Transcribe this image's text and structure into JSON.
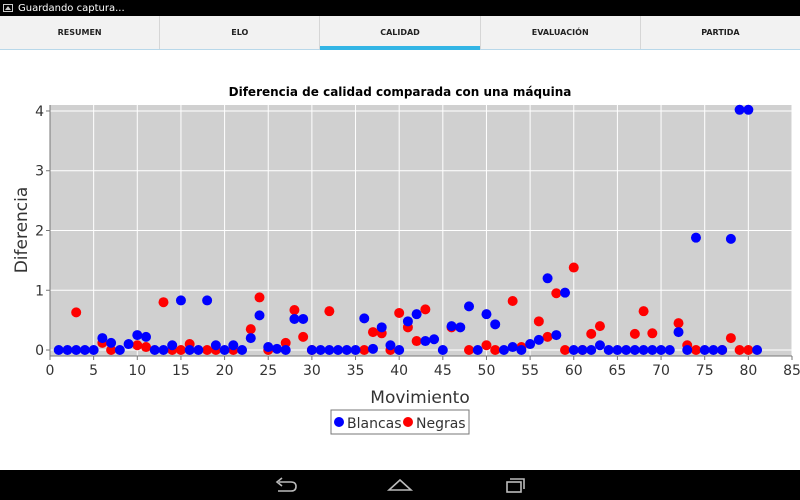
{
  "status": {
    "text": "Guardando captura..."
  },
  "tabs": [
    {
      "label": "RESUMEN",
      "active": false
    },
    {
      "label": "ELO",
      "active": false
    },
    {
      "label": "CALIDAD",
      "active": true
    },
    {
      "label": "EVALUACIÓN",
      "active": false
    },
    {
      "label": "PARTIDA",
      "active": false
    }
  ],
  "chart_data": {
    "type": "scatter",
    "title": "Diferencia de calidad comparada con una máquina",
    "xlabel": "Movimiento",
    "ylabel": "Diferencia",
    "xlim": [
      0,
      85
    ],
    "ylim": [
      -0.1,
      4.1
    ],
    "xticks": [
      0,
      5,
      10,
      15,
      20,
      25,
      30,
      35,
      40,
      45,
      50,
      55,
      60,
      65,
      70,
      75,
      80,
      85
    ],
    "yticks": [
      0,
      1,
      2,
      3,
      4
    ],
    "grid": true,
    "legend_position": "bottom-center",
    "series": [
      {
        "name": "Blancas",
        "color": "#0000ff",
        "points": [
          [
            1,
            0
          ],
          [
            2,
            0
          ],
          [
            3,
            0
          ],
          [
            4,
            0
          ],
          [
            5,
            0
          ],
          [
            6,
            0.2
          ],
          [
            7,
            0.12
          ],
          [
            8,
            0
          ],
          [
            9,
            0.1
          ],
          [
            10,
            0.25
          ],
          [
            11,
            0.22
          ],
          [
            12,
            0
          ],
          [
            13,
            0
          ],
          [
            14,
            0.08
          ],
          [
            15,
            0.83
          ],
          [
            16,
            0
          ],
          [
            17,
            0
          ],
          [
            18,
            0.83
          ],
          [
            19,
            0.08
          ],
          [
            20,
            0
          ],
          [
            21,
            0.08
          ],
          [
            22,
            0
          ],
          [
            23,
            0.2
          ],
          [
            24,
            0.58
          ],
          [
            25,
            0.05
          ],
          [
            26,
            0.02
          ],
          [
            27,
            0
          ],
          [
            28,
            0.52
          ],
          [
            29,
            0.52
          ],
          [
            30,
            0
          ],
          [
            31,
            0
          ],
          [
            32,
            0
          ],
          [
            33,
            0
          ],
          [
            34,
            0
          ],
          [
            35,
            0
          ],
          [
            36,
            0.53
          ],
          [
            37,
            0.02
          ],
          [
            38,
            0.38
          ],
          [
            39,
            0.08
          ],
          [
            40,
            0
          ],
          [
            41,
            0.48
          ],
          [
            42,
            0.6
          ],
          [
            43,
            0.15
          ],
          [
            44,
            0.18
          ],
          [
            45,
            0
          ],
          [
            46,
            0.4
          ],
          [
            47,
            0.38
          ],
          [
            48,
            0.73
          ],
          [
            49,
            0
          ],
          [
            50,
            0.6
          ],
          [
            51,
            0.43
          ],
          [
            52,
            0
          ],
          [
            53,
            0.05
          ],
          [
            54,
            0
          ],
          [
            55,
            0.1
          ],
          [
            56,
            0.17
          ],
          [
            57,
            1.2
          ],
          [
            58,
            0.25
          ],
          [
            59,
            0.96
          ],
          [
            60,
            0
          ],
          [
            61,
            0
          ],
          [
            62,
            0
          ],
          [
            63,
            0.08
          ],
          [
            64,
            0
          ],
          [
            65,
            0
          ],
          [
            66,
            0
          ],
          [
            67,
            0
          ],
          [
            68,
            0
          ],
          [
            69,
            0
          ],
          [
            70,
            0
          ],
          [
            71,
            0
          ],
          [
            72,
            0.3
          ],
          [
            73,
            0
          ],
          [
            74,
            1.88
          ],
          [
            75,
            0
          ],
          [
            76,
            0
          ],
          [
            77,
            0
          ],
          [
            78,
            1.86
          ],
          [
            79,
            4.02
          ],
          [
            80,
            4.02
          ],
          [
            81,
            0
          ]
        ]
      },
      {
        "name": "Negras",
        "color": "#ff0000",
        "points": [
          [
            3,
            0.63
          ],
          [
            6,
            0.12
          ],
          [
            7,
            0
          ],
          [
            10,
            0.08
          ],
          [
            11,
            0.05
          ],
          [
            13,
            0.8
          ],
          [
            14,
            0
          ],
          [
            15,
            0
          ],
          [
            16,
            0.1
          ],
          [
            18,
            0
          ],
          [
            19,
            0
          ],
          [
            21,
            0
          ],
          [
            23,
            0.35
          ],
          [
            24,
            0.88
          ],
          [
            25,
            0
          ],
          [
            27,
            0.12
          ],
          [
            28,
            0.67
          ],
          [
            29,
            0.22
          ],
          [
            30,
            0
          ],
          [
            32,
            0.65
          ],
          [
            36,
            0
          ],
          [
            37,
            0.3
          ],
          [
            38,
            0.28
          ],
          [
            39,
            0
          ],
          [
            40,
            0.62
          ],
          [
            41,
            0.38
          ],
          [
            42,
            0.15
          ],
          [
            43,
            0.68
          ],
          [
            46,
            0.38
          ],
          [
            48,
            0
          ],
          [
            50,
            0.08
          ],
          [
            51,
            0
          ],
          [
            53,
            0.82
          ],
          [
            54,
            0.05
          ],
          [
            56,
            0.48
          ],
          [
            57,
            0.22
          ],
          [
            58,
            0.95
          ],
          [
            59,
            0
          ],
          [
            60,
            1.38
          ],
          [
            61,
            0
          ],
          [
            62,
            0.27
          ],
          [
            63,
            0.4
          ],
          [
            67,
            0.27
          ],
          [
            68,
            0.65
          ],
          [
            69,
            0.28
          ],
          [
            72,
            0.45
          ],
          [
            73,
            0.08
          ],
          [
            74,
            0
          ],
          [
            77,
            0
          ],
          [
            78,
            0.2
          ],
          [
            79,
            0
          ],
          [
            80,
            0
          ]
        ]
      }
    ]
  },
  "navbar": {
    "back_icon": "back-icon",
    "home_icon": "home-icon",
    "recents_icon": "recents-icon"
  }
}
